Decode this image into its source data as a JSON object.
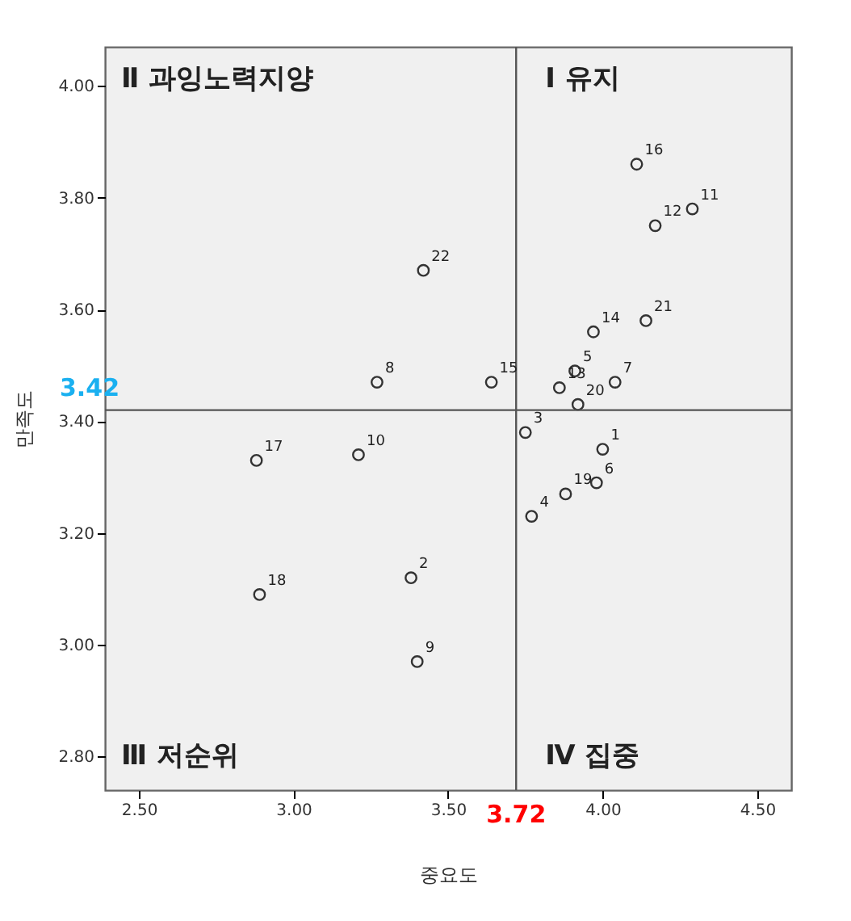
{
  "chart_data": {
    "type": "scatter",
    "xlabel": "중요도",
    "ylabel": "만족도",
    "x": [
      4.0,
      3.38,
      3.75,
      3.77,
      3.91,
      3.98,
      4.04,
      3.27,
      3.4,
      3.21,
      4.29,
      4.17,
      3.86,
      3.97,
      3.64,
      4.11,
      2.88,
      2.89,
      3.88,
      3.92,
      4.14,
      3.42
    ],
    "series": [
      {
        "color": "#333333",
        "values": [
          3.35,
          3.12,
          3.38,
          3.23,
          3.49,
          3.29,
          3.47,
          3.47,
          2.97,
          3.34,
          3.78,
          3.75,
          3.46,
          3.56,
          3.47,
          3.86,
          3.33,
          3.09,
          3.27,
          3.43,
          3.58,
          3.67
        ]
      }
    ],
    "xlim": [
      2.39,
      4.61
    ],
    "ylim": [
      2.74,
      4.07
    ],
    "xticks": [
      {
        "value": 2.5,
        "label": "2.50"
      },
      {
        "value": 3.0,
        "label": "3.00"
      },
      {
        "value": 3.5,
        "label": "3.50"
      },
      {
        "value": 4.0,
        "label": "4.00"
      },
      {
        "value": 4.5,
        "label": "4.50"
      }
    ],
    "yticks": [
      {
        "value": 2.8,
        "label": "2.80"
      },
      {
        "value": 3.0,
        "label": "3.00"
      },
      {
        "value": 3.2,
        "label": "3.20"
      },
      {
        "value": 3.4,
        "label": "3.40"
      },
      {
        "value": 3.6,
        "label": "3.60"
      },
      {
        "value": 3.8,
        "label": "3.80"
      },
      {
        "value": 4.0,
        "label": "4.00"
      }
    ],
    "ref_lines": [
      {
        "axis": "x",
        "value": 3.72,
        "label": "3.72",
        "color": "#555555"
      },
      {
        "axis": "y",
        "value": 3.42,
        "label": "3.42",
        "color": "#555555"
      }
    ],
    "annotations": [
      "Ⅱ 과잉노력지양",
      "Ⅰ 유지",
      "Ⅲ 저순위",
      "Ⅳ 집중",
      {
        "text": "1",
        "x": 4.0,
        "y": 3.35
      },
      {
        "text": "2",
        "x": 3.38,
        "y": 3.12
      },
      {
        "text": "3",
        "x": 3.75,
        "y": 3.38
      },
      {
        "text": "4",
        "x": 3.77,
        "y": 3.23
      },
      {
        "text": "5",
        "x": 3.91,
        "y": 3.49
      },
      {
        "text": "6",
        "x": 3.98,
        "y": 3.29
      },
      {
        "text": "7",
        "x": 4.04,
        "y": 3.47
      },
      {
        "text": "8",
        "x": 3.27,
        "y": 3.47
      },
      {
        "text": "9",
        "x": 3.4,
        "y": 2.97
      },
      {
        "text": "10",
        "x": 3.21,
        "y": 3.34
      },
      {
        "text": "11",
        "x": 4.29,
        "y": 3.78
      },
      {
        "text": "12",
        "x": 4.17,
        "y": 3.75
      },
      {
        "text": "13",
        "x": 3.86,
        "y": 3.46
      },
      {
        "text": "14",
        "x": 3.97,
        "y": 3.56
      },
      {
        "text": "15",
        "x": 3.64,
        "y": 3.47
      },
      {
        "text": "16",
        "x": 4.11,
        "y": 3.86
      },
      {
        "text": "17",
        "x": 2.88,
        "y": 3.33
      },
      {
        "text": "18",
        "x": 2.89,
        "y": 3.09
      },
      {
        "text": "19",
        "x": 3.88,
        "y": 3.27
      },
      {
        "text": "20",
        "x": 3.92,
        "y": 3.43
      },
      {
        "text": "21",
        "x": 4.14,
        "y": 3.58
      },
      {
        "text": "22",
        "x": 3.42,
        "y": 3.67
      }
    ],
    "grid": false,
    "marker": "circle"
  }
}
